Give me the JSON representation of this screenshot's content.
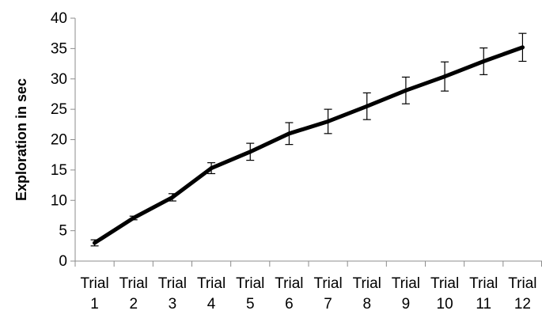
{
  "chart_data": {
    "type": "line",
    "title": "",
    "xlabel": "",
    "ylabel": "Exploration in sec",
    "ylim": [
      0,
      40
    ],
    "yticks": [
      0,
      5,
      10,
      15,
      20,
      25,
      30,
      35,
      40
    ],
    "categories": [
      {
        "line1": "Trial",
        "line2": "1"
      },
      {
        "line1": "Trial",
        "line2": "2"
      },
      {
        "line1": "Trial",
        "line2": "3"
      },
      {
        "line1": "Trial",
        "line2": "4"
      },
      {
        "line1": "Trial",
        "line2": "5"
      },
      {
        "line1": "Trial",
        "line2": "6"
      },
      {
        "line1": "Trial",
        "line2": "7"
      },
      {
        "line1": "Trial",
        "line2": "8"
      },
      {
        "line1": "Trial",
        "line2": "9"
      },
      {
        "line1": "Trial",
        "line2": "10"
      },
      {
        "line1": "Trial",
        "line2": "11"
      },
      {
        "line1": "Trial",
        "line2": "12"
      }
    ],
    "series": [
      {
        "values": [
          3.0,
          7.1,
          10.5,
          15.3,
          18.0,
          21.0,
          23.0,
          25.5,
          28.1,
          30.4,
          32.9,
          35.2
        ],
        "error": [
          0.5,
          0.3,
          0.6,
          0.9,
          1.4,
          1.8,
          2.0,
          2.2,
          2.2,
          2.4,
          2.2,
          2.3
        ],
        "color": "#000000"
      }
    ],
    "grid": false,
    "legend": "none"
  }
}
